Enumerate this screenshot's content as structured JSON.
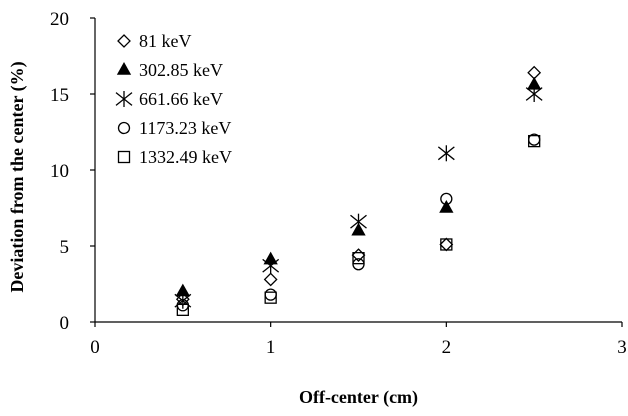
{
  "chart_data": {
    "type": "scatter",
    "title": "",
    "xlabel": "Off-center (cm)",
    "ylabel": "Deviation from the center (%)",
    "xlim": [
      0,
      3
    ],
    "ylim": [
      0,
      20
    ],
    "xticks": [
      0,
      1,
      2,
      3
    ],
    "yticks": [
      0,
      5,
      10,
      15,
      20
    ],
    "grid": false,
    "legend": "top-left",
    "series": [
      {
        "name": "81 keV",
        "marker": "diamond-open",
        "x": [
          0.5,
          1,
          1.5,
          2,
          2.5
        ],
        "y": [
          1.5,
          2.8,
          4.4,
          5.1,
          16.4
        ]
      },
      {
        "name": "302.85 keV",
        "marker": "triangle-filled",
        "x": [
          0.5,
          1,
          1.5,
          2,
          2.5
        ],
        "y": [
          2.0,
          4.1,
          6.0,
          7.5,
          15.6
        ]
      },
      {
        "name": "661.66 keV",
        "marker": "asterisk",
        "x": [
          0.5,
          1,
          1.5,
          2,
          2.5
        ],
        "y": [
          1.4,
          3.7,
          6.6,
          11.1,
          15.0
        ]
      },
      {
        "name": "1173.23 keV",
        "marker": "circle-open",
        "x": [
          0.5,
          1,
          1.5,
          2,
          2.5
        ],
        "y": [
          1.1,
          1.8,
          3.8,
          8.1,
          12.0
        ]
      },
      {
        "name": "1332.49 keV",
        "marker": "square-open",
        "x": [
          0.5,
          1,
          1.5,
          2,
          2.5
        ],
        "y": [
          0.8,
          1.6,
          4.2,
          5.1,
          11.9
        ]
      }
    ]
  }
}
